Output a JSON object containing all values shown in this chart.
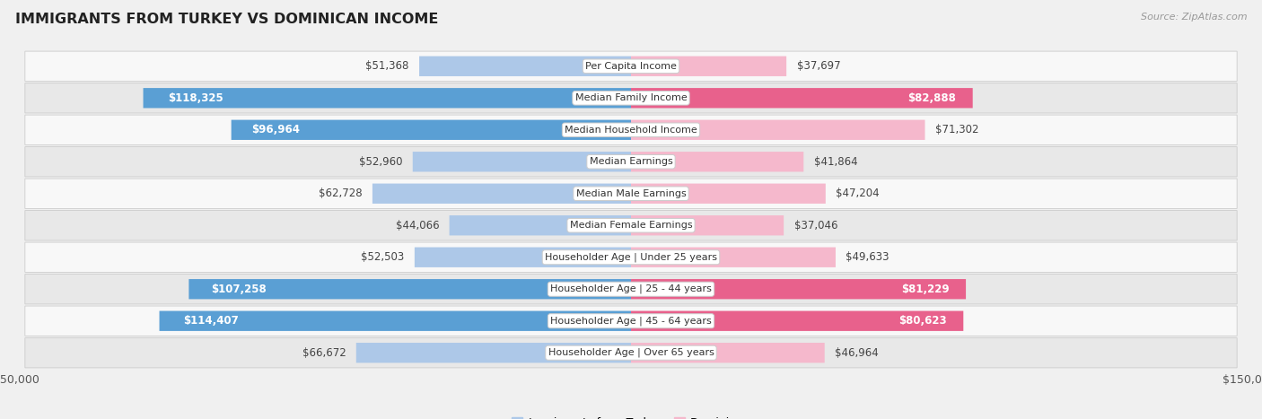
{
  "title": "IMMIGRANTS FROM TURKEY VS DOMINICAN INCOME",
  "source": "Source: ZipAtlas.com",
  "categories": [
    "Per Capita Income",
    "Median Family Income",
    "Median Household Income",
    "Median Earnings",
    "Median Male Earnings",
    "Median Female Earnings",
    "Householder Age | Under 25 years",
    "Householder Age | 25 - 44 years",
    "Householder Age | 45 - 64 years",
    "Householder Age | Over 65 years"
  ],
  "turkey_values": [
    51368,
    118325,
    96964,
    52960,
    62728,
    44066,
    52503,
    107258,
    114407,
    66672
  ],
  "dominican_values": [
    37697,
    82888,
    71302,
    41864,
    47204,
    37046,
    49633,
    81229,
    80623,
    46964
  ],
  "turkey_labels": [
    "$51,368",
    "$118,325",
    "$96,964",
    "$52,960",
    "$62,728",
    "$44,066",
    "$52,503",
    "$107,258",
    "$114,407",
    "$66,672"
  ],
  "dominican_labels": [
    "$37,697",
    "$82,888",
    "$71,302",
    "$41,864",
    "$47,204",
    "$37,046",
    "$49,633",
    "$81,229",
    "$80,623",
    "$46,964"
  ],
  "turkey_color_light": "#adc8e8",
  "turkey_color_dark": "#5a9fd4",
  "dominican_color_light": "#f5b8cc",
  "dominican_color_dark": "#e8618c",
  "axis_max": 150000,
  "legend_turkey": "Immigrants from Turkey",
  "legend_dominican": "Dominican",
  "background_color": "#f0f0f0",
  "row_bg_light": "#f8f8f8",
  "row_bg_dark": "#e8e8e8",
  "large_threshold": 80000,
  "label_fontsize": 8.5,
  "cat_fontsize": 8.0
}
